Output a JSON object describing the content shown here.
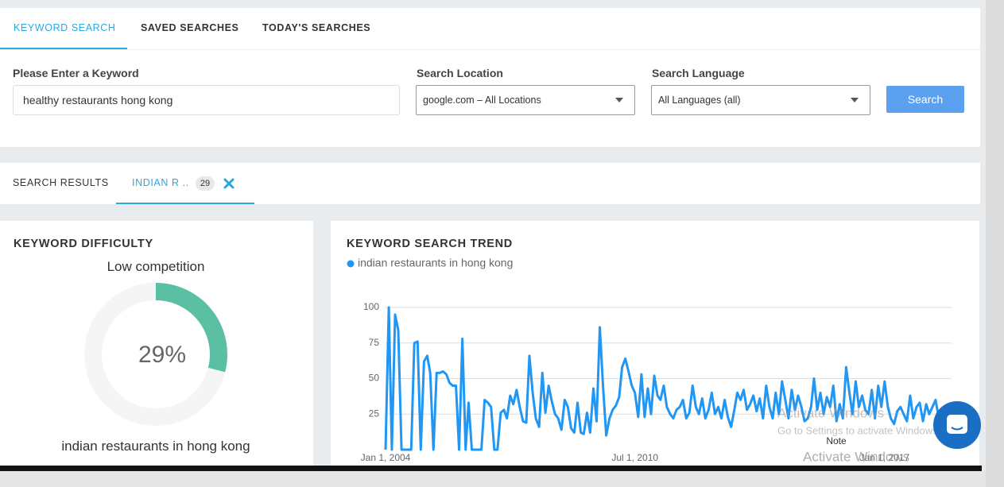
{
  "tabs": [
    "KEYWORD SEARCH",
    "SAVED SEARCHES",
    "TODAY'S SEARCHES"
  ],
  "form": {
    "keyword_label": "Please Enter a Keyword",
    "keyword_value": "healthy restaurants hong kong",
    "location_label": "Search Location",
    "location_value": "google.com – All Locations",
    "language_label": "Search Language",
    "language_value": "All Languages (all)",
    "button": "Search"
  },
  "results_tabs": {
    "search_results": "SEARCH RESULTS",
    "active": "INDIAN R ..",
    "count": 29
  },
  "difficulty": {
    "title": "KEYWORD DIFFICULTY",
    "subtitle": "Low competition",
    "value": 29,
    "value_label": "29%",
    "keyword": "indian restaurants in hong kong"
  },
  "chart_data": {
    "type": "line",
    "title": "KEYWORD SEARCH TREND",
    "x": [
      "2004-01-01",
      "2004-02-01",
      "2004-03-01",
      "2004-04-01",
      "2004-05-01",
      "2004-06-01",
      "2004-07-01",
      "2004-08-01",
      "2004-09-01",
      "2004-10-01",
      "2004-11-01",
      "2004-12-01",
      "2005-01-01",
      "2005-02-01",
      "2005-03-01",
      "2005-04-01",
      "2005-05-01",
      "2005-06-01",
      "2005-07-01",
      "2005-08-01",
      "2005-09-01",
      "2005-10-01",
      "2005-11-01",
      "2005-12-01",
      "2006-01-01",
      "2006-02-01",
      "2006-03-01",
      "2006-04-01",
      "2006-05-01",
      "2006-06-01",
      "2006-07-01",
      "2006-08-01",
      "2006-09-01",
      "2006-10-01",
      "2006-11-01",
      "2006-12-01",
      "2007-01-01",
      "2007-02-01",
      "2007-03-01",
      "2007-04-01",
      "2007-05-01",
      "2007-06-01",
      "2007-07-01",
      "2007-08-01",
      "2007-09-01",
      "2007-10-01",
      "2007-11-01",
      "2007-12-01",
      "2008-01-01",
      "2008-02-01",
      "2008-03-01",
      "2008-04-01",
      "2008-05-01",
      "2008-06-01",
      "2008-07-01",
      "2008-08-01",
      "2008-09-01",
      "2008-10-01",
      "2008-11-01",
      "2008-12-01",
      "2009-01-01",
      "2009-02-01",
      "2009-03-01",
      "2009-04-01",
      "2009-05-01",
      "2009-06-01",
      "2009-07-01",
      "2009-08-01",
      "2009-09-01",
      "2009-10-01",
      "2009-11-01",
      "2009-12-01",
      "2010-01-01",
      "2010-02-01",
      "2010-03-01",
      "2010-04-01",
      "2010-05-01",
      "2010-06-01",
      "2010-07-01",
      "2010-08-01",
      "2010-09-01",
      "2010-10-01",
      "2010-11-01",
      "2010-12-01",
      "2011-01-01",
      "2011-02-01",
      "2011-03-01",
      "2011-04-01",
      "2011-05-01",
      "2011-06-01",
      "2011-07-01",
      "2011-08-01",
      "2011-09-01",
      "2011-10-01",
      "2011-11-01",
      "2011-12-01",
      "2012-01-01",
      "2012-02-01",
      "2012-03-01",
      "2012-04-01",
      "2012-05-01",
      "2012-06-01",
      "2012-07-01",
      "2012-08-01",
      "2012-09-01",
      "2012-10-01",
      "2012-11-01",
      "2012-12-01",
      "2013-01-01",
      "2013-02-01",
      "2013-03-01",
      "2013-04-01",
      "2013-05-01",
      "2013-06-01",
      "2013-07-01",
      "2013-08-01",
      "2013-09-01",
      "2013-10-01",
      "2013-11-01",
      "2013-12-01",
      "2014-01-01",
      "2014-02-01",
      "2014-03-01",
      "2014-04-01",
      "2014-05-01",
      "2014-06-01",
      "2014-07-01",
      "2014-08-01",
      "2014-09-01",
      "2014-10-01",
      "2014-11-01",
      "2014-12-01",
      "2015-01-01",
      "2015-02-01",
      "2015-03-01",
      "2015-04-01",
      "2015-05-01",
      "2015-06-01",
      "2015-07-01",
      "2015-08-01",
      "2015-09-01",
      "2015-10-01",
      "2015-11-01",
      "2015-12-01",
      "2016-01-01",
      "2016-02-01",
      "2016-03-01",
      "2016-04-01",
      "2016-05-01",
      "2016-06-01",
      "2016-07-01",
      "2016-08-01",
      "2016-09-01",
      "2016-10-01",
      "2016-11-01",
      "2016-12-01",
      "2017-01-01",
      "2017-02-01",
      "2017-03-01",
      "2017-04-01",
      "2017-05-01",
      "2017-06-01",
      "2017-07-01",
      "2017-08-01",
      "2017-09-01",
      "2017-10-01",
      "2017-11-01",
      "2017-12-01",
      "2018-01-01",
      "2018-02-01",
      "2018-03-01",
      "2018-04-01",
      "2018-05-01",
      "2018-06-01",
      "2018-07-01"
    ],
    "series": [
      {
        "name": "indian restaurants in hong kong",
        "color": "#2196f3",
        "values": [
          0,
          100,
          0,
          95,
          84,
          0,
          0,
          0,
          0,
          75,
          76,
          0,
          62,
          66,
          54,
          0,
          54,
          54,
          55,
          53,
          47,
          45,
          45,
          0,
          78,
          0,
          33,
          0,
          0,
          0,
          0,
          35,
          33,
          30,
          0,
          0,
          26,
          28,
          22,
          38,
          32,
          42,
          30,
          20,
          19,
          66,
          40,
          22,
          16,
          54,
          26,
          45,
          34,
          25,
          22,
          14,
          35,
          30,
          15,
          12,
          33,
          12,
          11,
          26,
          12,
          43,
          20,
          86,
          44,
          10,
          22,
          28,
          31,
          37,
          58,
          64,
          55,
          45,
          40,
          23,
          53,
          23,
          43,
          25,
          52,
          38,
          35,
          45,
          30,
          25,
          22,
          28,
          30,
          35,
          22,
          26,
          45,
          30,
          25,
          36,
          22,
          28,
          40,
          25,
          30,
          22,
          35,
          23,
          16,
          28,
          40,
          35,
          42,
          28,
          32,
          38,
          27,
          36,
          22,
          45,
          30,
          22,
          40,
          25,
          48,
          35,
          22,
          42,
          28,
          38,
          30,
          20,
          22,
          30,
          50,
          28,
          40,
          25,
          37,
          30,
          45,
          20,
          32,
          22,
          58,
          40,
          25,
          48,
          30,
          38,
          28,
          25,
          42,
          22,
          45,
          30,
          48,
          30,
          22,
          18,
          27,
          30,
          25,
          20,
          38,
          22,
          30,
          33,
          20,
          32,
          25,
          30,
          35,
          22,
          28
        ]
      }
    ],
    "xlim": [
      "2004-01-01",
      "2018-07-01"
    ],
    "xticks": [
      {
        "value": "2004-01-01",
        "label": "Jan 1, 2004"
      },
      {
        "value": "2010-07-01",
        "label": "Jul 1, 2010"
      },
      {
        "value": "2017-01-01",
        "label": "Jan 1, 2017"
      }
    ],
    "ylim": [
      0,
      100
    ],
    "yticks": [
      25,
      50,
      75,
      100
    ],
    "grid": true
  },
  "overlay": {
    "note": "Note",
    "activate": "Activate Windows",
    "activate_hint": "Go to Settings to activate Windows."
  }
}
